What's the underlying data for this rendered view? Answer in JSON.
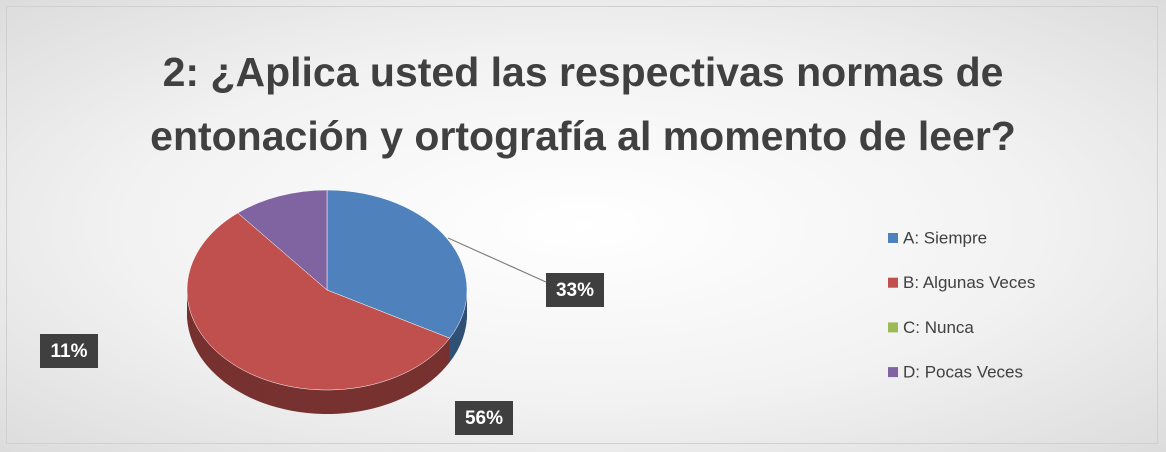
{
  "chart_data": {
    "type": "pie",
    "title": "2: ¿Aplica usted las respectivas normas de entonación y ortografía al momento de leer?",
    "categories": [
      "A: Siempre",
      "B: Algunas Veces",
      "C: Nunca",
      "D: Pocas Veces"
    ],
    "values": [
      33,
      56,
      0,
      11
    ],
    "value_labels": [
      "33%",
      "56%",
      null,
      "11%"
    ],
    "colors": [
      "#4f81bd",
      "#c0504d",
      "#9bbb59",
      "#8064a2"
    ],
    "legend": "right"
  }
}
